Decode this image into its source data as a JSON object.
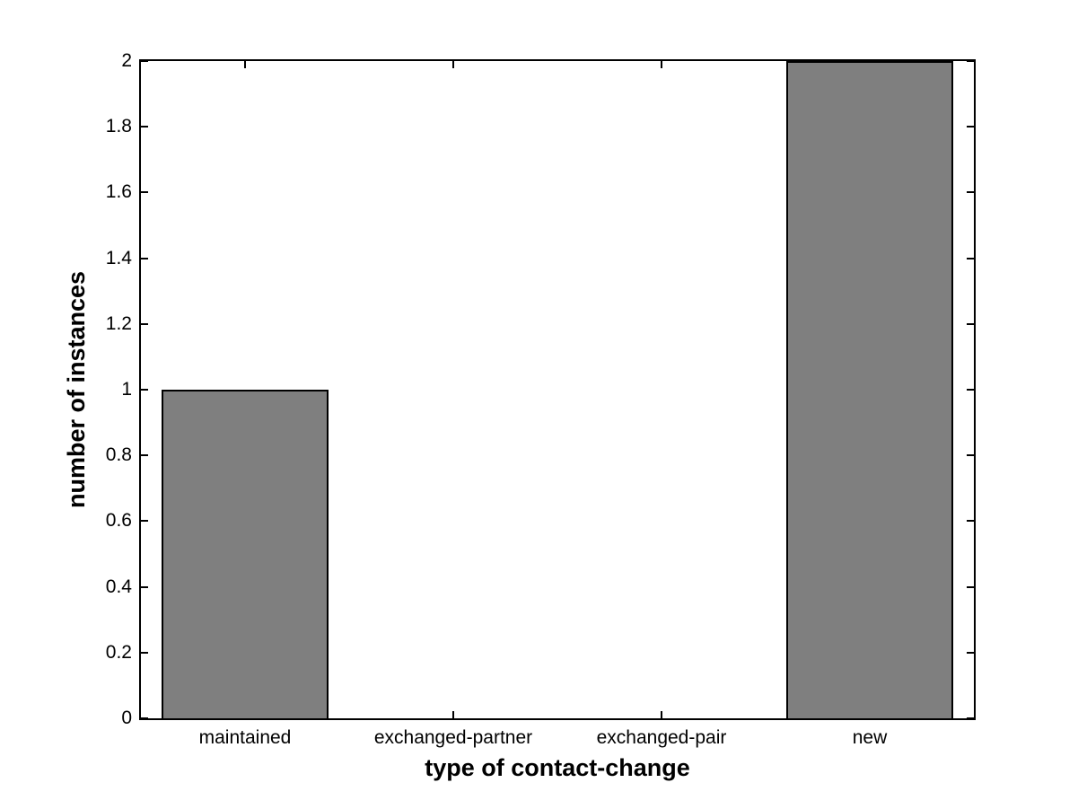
{
  "chart_data": {
    "type": "bar",
    "title": "",
    "xlabel": "type of contact-change",
    "ylabel": "number of instances",
    "categories": [
      "maintained",
      "exchanged-partner",
      "exchanged-pair",
      "new"
    ],
    "values": [
      1,
      0,
      0,
      2
    ],
    "xlim": [
      0.5,
      4.5
    ],
    "ylim": [
      0,
      2
    ],
    "yticks": [
      0,
      0.2,
      0.4,
      0.6,
      0.8,
      1,
      1.2,
      1.4,
      1.6,
      1.8,
      2
    ],
    "ytick_labels": [
      "0",
      "0.2",
      "0.4",
      "0.6",
      "0.8",
      "1",
      "1.2",
      "1.4",
      "1.6",
      "1.8",
      "2"
    ],
    "bar_width": 0.8,
    "grid": false,
    "legend": null,
    "colors": {
      "bar_fill": "#7f7f7f",
      "bar_edge": "#000000",
      "axis": "#000000",
      "background": "#ffffff",
      "text": "#000000"
    }
  }
}
